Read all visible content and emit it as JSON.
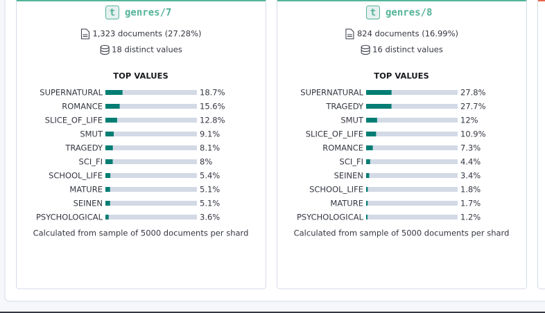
{
  "cards": [
    {
      "title": "genres/7",
      "badge": "t",
      "documents": "1,323 documents (27.28%)",
      "distinct": "18 distinct values",
      "top_values_title": "TOP VALUES",
      "footer": "Calculated from sample of 5000 documents per shard",
      "chart_data": {
        "type": "bar",
        "categories": [
          "SUPERNATURAL",
          "ROMANCE",
          "SLICE_OF_LIFE",
          "SMUT",
          "TRAGEDY",
          "SCI_FI",
          "SCHOOL_LIFE",
          "MATURE",
          "SEINEN",
          "PSYCHOLOGICAL"
        ],
        "values": [
          18.7,
          15.6,
          12.8,
          9.1,
          8.1,
          8,
          5.4,
          5.1,
          5.1,
          3.6
        ],
        "value_labels": [
          "18.7%",
          "15.6%",
          "12.8%",
          "9.1%",
          "8.1%",
          "8%",
          "5.4%",
          "5.1%",
          "5.1%",
          "3.6%"
        ],
        "xlim": [
          0,
          100
        ],
        "color": "#017d73"
      }
    },
    {
      "title": "genres/8",
      "badge": "t",
      "documents": "824 documents (16.99%)",
      "distinct": "16 distinct values",
      "top_values_title": "TOP VALUES",
      "footer": "Calculated from sample of 5000 documents per shard",
      "chart_data": {
        "type": "bar",
        "categories": [
          "SUPERNATURAL",
          "TRAGEDY",
          "SMUT",
          "SLICE_OF_LIFE",
          "ROMANCE",
          "SCI_FI",
          "SEINEN",
          "SCHOOL_LIFE",
          "MATURE",
          "PSYCHOLOGICAL"
        ],
        "values": [
          27.8,
          27.7,
          12,
          10.9,
          7.3,
          4.4,
          3.4,
          1.8,
          1.7,
          1.2
        ],
        "value_labels": [
          "27.8%",
          "27.7%",
          "12%",
          "10.9%",
          "7.3%",
          "4.4%",
          "3.4%",
          "1.8%",
          "1.7%",
          "1.2%"
        ],
        "xlim": [
          0,
          100
        ],
        "color": "#017d73"
      }
    }
  ]
}
